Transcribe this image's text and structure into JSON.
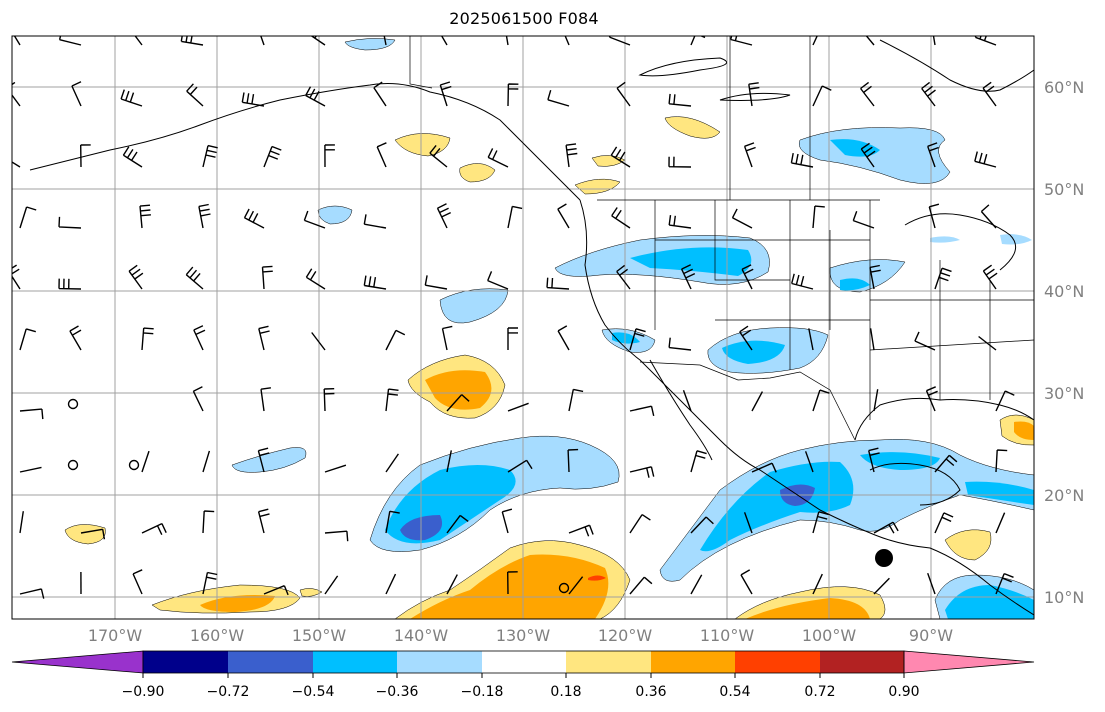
{
  "title": "2025061500 F084",
  "lat_labels": [
    "60°N",
    "50°N",
    "40°N",
    "30°N",
    "20°N",
    "10°N"
  ],
  "lon_labels": [
    "170°W",
    "160°W",
    "150°W",
    "140°W",
    "130°W",
    "120°W",
    "110°W",
    "100°W",
    "90°W"
  ],
  "colorbar": {
    "labels": [
      "−0.90",
      "−0.72",
      "−0.54",
      "−0.36",
      "−0.18",
      "0.18",
      "0.36",
      "0.54",
      "0.72",
      "0.90"
    ],
    "colors": [
      "#9932cc",
      "#00008b",
      "#3a5fcd",
      "#00bfff",
      "#a6dcff",
      "#ffffff",
      "#ffe680",
      "#ffa500",
      "#ff4000",
      "#b22222",
      "#ff88b0"
    ]
  },
  "map": {
    "extent": {
      "lon_min": -180,
      "lon_max": -80,
      "lat_min": 8,
      "lat_max": 65
    },
    "gridline_color": "#a0a0a0",
    "coastline_color": "#000000",
    "feature_markers": [
      "high-pressure-center-dot"
    ]
  }
}
